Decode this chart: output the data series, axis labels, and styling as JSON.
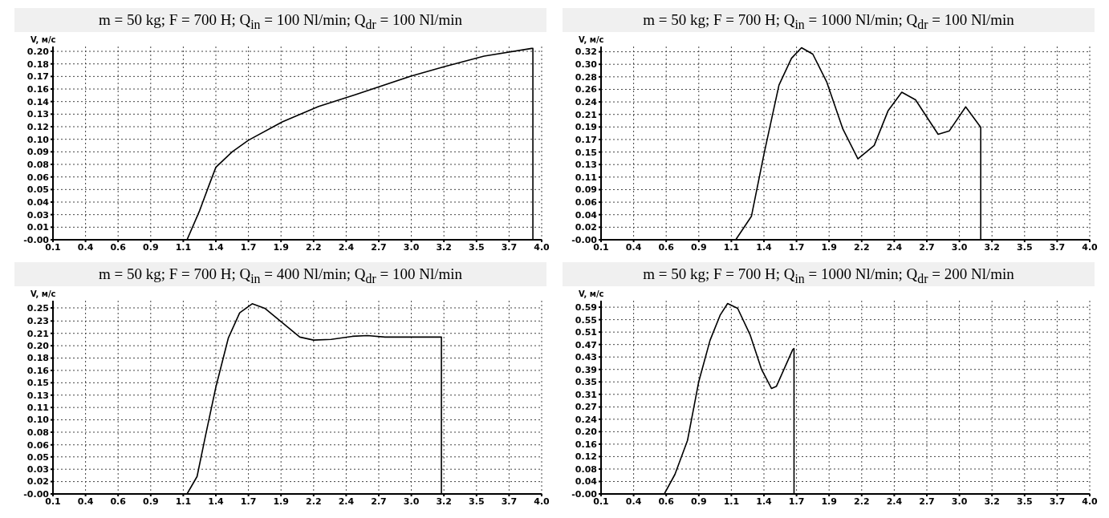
{
  "chart_data": [
    {
      "type": "line",
      "title": "m = 50 kg;  F = 700 H;  Q$_{in}$ = 100 Nl/min;   Q$_{dr}$ = 100 Nl/min",
      "ylabel": "V, м/с",
      "grid": true,
      "marker": "none",
      "line_style": "solid",
      "xlim": [
        0.1,
        4.0
      ],
      "ylim": [
        0,
        0.2
      ],
      "xticks": [
        {
          "value": 0.1,
          "label": "0.1"
        },
        {
          "value": 0.36,
          "label": "0.4"
        },
        {
          "value": 0.62,
          "label": "0.6"
        },
        {
          "value": 0.88,
          "label": "0.9"
        },
        {
          "value": 1.14,
          "label": "1.1"
        },
        {
          "value": 1.4,
          "label": "1.4"
        },
        {
          "value": 1.66,
          "label": "1.7"
        },
        {
          "value": 1.92,
          "label": "1.9"
        },
        {
          "value": 2.18,
          "label": "2.2"
        },
        {
          "value": 2.44,
          "label": "2.4"
        },
        {
          "value": 2.7,
          "label": "2.7"
        },
        {
          "value": 2.96,
          "label": "3.0"
        },
        {
          "value": 3.22,
          "label": "3.2"
        },
        {
          "value": 3.48,
          "label": "3.5"
        },
        {
          "value": 3.74,
          "label": "3.7"
        },
        {
          "value": 4.0,
          "label": "4.0"
        }
      ],
      "yticks": [
        {
          "value": 0,
          "label": "-0.00"
        },
        {
          "value": 0.013,
          "label": "0.01"
        },
        {
          "value": 0.026,
          "label": "0.03"
        },
        {
          "value": 0.039,
          "label": "0.04"
        },
        {
          "value": 0.052,
          "label": "0.05"
        },
        {
          "value": 0.065,
          "label": "0.06"
        },
        {
          "value": 0.078,
          "label": "0.08"
        },
        {
          "value": 0.091,
          "label": "0.09"
        },
        {
          "value": 0.104,
          "label": "0.10"
        },
        {
          "value": 0.117,
          "label": "0.12"
        },
        {
          "value": 0.13,
          "label": "0.13"
        },
        {
          "value": 0.143,
          "label": "0.14"
        },
        {
          "value": 0.156,
          "label": "0.16"
        },
        {
          "value": 0.169,
          "label": "0.17"
        },
        {
          "value": 0.182,
          "label": "0.18"
        },
        {
          "value": 0.195,
          "label": "0.20"
        }
      ],
      "series": [
        {
          "color": "#000000",
          "x": [
            0.1,
            1.17,
            1.27,
            1.35,
            1.4,
            1.53,
            1.66,
            1.93,
            2.22,
            2.51,
            2.95,
            3.22,
            3.54,
            3.92,
            3.93,
            3.93
          ],
          "values": [
            0,
            0,
            0.03,
            0.058,
            0.075,
            0.091,
            0.103,
            0.122,
            0.138,
            0.15,
            0.169,
            0.179,
            0.19,
            0.198,
            0.198,
            0
          ]
        }
      ]
    },
    {
      "type": "line",
      "title": "m = 50 kg;  F = 700 H;  Q$_{in}$ = 1000 Nl/min;   Q$_{dr}$ = 100 Nl/min",
      "ylabel": "V, м/с",
      "grid": true,
      "marker": "none",
      "line_style": "solid",
      "xlim": [
        0.1,
        4.0
      ],
      "ylim": [
        0,
        0.33
      ],
      "xticks": [
        {
          "value": 0.1,
          "label": "0.1"
        },
        {
          "value": 0.36,
          "label": "0.4"
        },
        {
          "value": 0.62,
          "label": "0.6"
        },
        {
          "value": 0.88,
          "label": "0.9"
        },
        {
          "value": 1.14,
          "label": "1.1"
        },
        {
          "value": 1.4,
          "label": "1.4"
        },
        {
          "value": 1.66,
          "label": "1.7"
        },
        {
          "value": 1.92,
          "label": "1.9"
        },
        {
          "value": 2.18,
          "label": "2.2"
        },
        {
          "value": 2.44,
          "label": "2.4"
        },
        {
          "value": 2.7,
          "label": "2.7"
        },
        {
          "value": 2.96,
          "label": "3.0"
        },
        {
          "value": 3.22,
          "label": "3.2"
        },
        {
          "value": 3.48,
          "label": "3.5"
        },
        {
          "value": 3.74,
          "label": "3.7"
        },
        {
          "value": 4.0,
          "label": "4.0"
        }
      ],
      "yticks": [
        {
          "value": 0,
          "label": "-0.00"
        },
        {
          "value": 0.0214,
          "label": "0.02"
        },
        {
          "value": 0.0428,
          "label": "0.04"
        },
        {
          "value": 0.0642,
          "label": "0.06"
        },
        {
          "value": 0.0856,
          "label": "0.09"
        },
        {
          "value": 0.107,
          "label": "0.11"
        },
        {
          "value": 0.1284,
          "label": "0.13"
        },
        {
          "value": 0.1498,
          "label": "0.15"
        },
        {
          "value": 0.1712,
          "label": "0.17"
        },
        {
          "value": 0.1926,
          "label": "0.19"
        },
        {
          "value": 0.214,
          "label": "0.21"
        },
        {
          "value": 0.2354,
          "label": "0.24"
        },
        {
          "value": 0.2568,
          "label": "0.26"
        },
        {
          "value": 0.2782,
          "label": "0.28"
        },
        {
          "value": 0.2996,
          "label": "0.30"
        },
        {
          "value": 0.321,
          "label": "0.32"
        }
      ],
      "series": [
        {
          "color": "#000000",
          "x": [
            1.175,
            1.3,
            1.4,
            1.52,
            1.62,
            1.7,
            1.79,
            1.9,
            2.03,
            2.15,
            2.28,
            2.39,
            2.5,
            2.61,
            2.79,
            2.88,
            3.01,
            3.13,
            3.13
          ],
          "values": [
            0,
            0.04,
            0.146,
            0.264,
            0.31,
            0.328,
            0.317,
            0.27,
            0.189,
            0.138,
            0.161,
            0.22,
            0.252,
            0.239,
            0.18,
            0.186,
            0.227,
            0.192,
            0
          ]
        }
      ]
    },
    {
      "type": "line",
      "title": "m = 50 kg;  F = 700 H;  Q$_{in}$ = 400 Nl/min;   Q$_{dr}$ = 100 Nl/min",
      "ylabel": "V, м/с",
      "grid": true,
      "marker": "none",
      "line_style": "solid",
      "xlim": [
        0.1,
        4.0
      ],
      "ylim": [
        0,
        0.255
      ],
      "xticks": [
        {
          "value": 0.1,
          "label": "0.1"
        },
        {
          "value": 0.36,
          "label": "0.4"
        },
        {
          "value": 0.62,
          "label": "0.6"
        },
        {
          "value": 0.88,
          "label": "0.9"
        },
        {
          "value": 1.14,
          "label": "1.1"
        },
        {
          "value": 1.4,
          "label": "1.4"
        },
        {
          "value": 1.66,
          "label": "1.7"
        },
        {
          "value": 1.92,
          "label": "1.9"
        },
        {
          "value": 2.18,
          "label": "2.2"
        },
        {
          "value": 2.44,
          "label": "2.4"
        },
        {
          "value": 2.7,
          "label": "2.7"
        },
        {
          "value": 2.96,
          "label": "3.0"
        },
        {
          "value": 3.22,
          "label": "3.2"
        },
        {
          "value": 3.48,
          "label": "3.5"
        },
        {
          "value": 3.74,
          "label": "3.7"
        },
        {
          "value": 4.0,
          "label": "4.0"
        }
      ],
      "yticks": [
        {
          "value": 0,
          "label": "-0.00"
        },
        {
          "value": 0.0163,
          "label": "0.02"
        },
        {
          "value": 0.0326,
          "label": "0.03"
        },
        {
          "value": 0.0489,
          "label": "0.05"
        },
        {
          "value": 0.0648,
          "label": "0.06"
        },
        {
          "value": 0.0815,
          "label": "0.08"
        },
        {
          "value": 0.0978,
          "label": "0.10"
        },
        {
          "value": 0.1141,
          "label": "0.11"
        },
        {
          "value": 0.1304,
          "label": "0.13"
        },
        {
          "value": 0.1467,
          "label": "0.15"
        },
        {
          "value": 0.163,
          "label": "0.16"
        },
        {
          "value": 0.1793,
          "label": "0.18"
        },
        {
          "value": 0.1956,
          "label": "0.20"
        },
        {
          "value": 0.2119,
          "label": "0.21"
        },
        {
          "value": 0.2282,
          "label": "0.23"
        },
        {
          "value": 0.2455,
          "label": "0.25"
        }
      ],
      "series": [
        {
          "color": "#000000",
          "x": [
            1.17,
            1.25,
            1.32,
            1.4,
            1.5,
            1.59,
            1.69,
            1.79,
            1.93,
            2.07,
            2.18,
            2.32,
            2.49,
            2.61,
            2.75,
            3.2,
            3.2
          ],
          "values": [
            0,
            0.023,
            0.079,
            0.141,
            0.206,
            0.239,
            0.251,
            0.245,
            0.226,
            0.207,
            0.203,
            0.204,
            0.208,
            0.209,
            0.207,
            0.207,
            0
          ]
        }
      ]
    },
    {
      "type": "line",
      "title": "m = 50 kg;  F = 700 H;  Q$_{in}$ = 1000 Nl/min;   Q$_{dr}$ = 200 Nl/min",
      "ylabel": "V, м/с",
      "grid": true,
      "marker": "none",
      "line_style": "solid",
      "xlim": [
        0.1,
        4.0
      ],
      "ylim": [
        0,
        0.61
      ],
      "xticks": [
        {
          "value": 0.1,
          "label": "0.1"
        },
        {
          "value": 0.36,
          "label": "0.4"
        },
        {
          "value": 0.62,
          "label": "0.6"
        },
        {
          "value": 0.88,
          "label": "0.9"
        },
        {
          "value": 1.14,
          "label": "1.1"
        },
        {
          "value": 1.4,
          "label": "1.4"
        },
        {
          "value": 1.66,
          "label": "1.7"
        },
        {
          "value": 1.92,
          "label": "1.9"
        },
        {
          "value": 2.18,
          "label": "2.2"
        },
        {
          "value": 2.44,
          "label": "2.4"
        },
        {
          "value": 2.7,
          "label": "2.7"
        },
        {
          "value": 2.96,
          "label": "3.0"
        },
        {
          "value": 3.22,
          "label": "3.2"
        },
        {
          "value": 3.48,
          "label": "3.5"
        },
        {
          "value": 3.74,
          "label": "3.7"
        },
        {
          "value": 4.0,
          "label": "4.0"
        }
      ],
      "yticks": [
        {
          "value": 0,
          "label": "-0.00"
        },
        {
          "value": 0.0393,
          "label": "0.04"
        },
        {
          "value": 0.0786,
          "label": "0.08"
        },
        {
          "value": 0.1179,
          "label": "0.12"
        },
        {
          "value": 0.1572,
          "label": "0.16"
        },
        {
          "value": 0.1965,
          "label": "0.20"
        },
        {
          "value": 0.2358,
          "label": "0.24"
        },
        {
          "value": 0.2745,
          "label": "0.27"
        },
        {
          "value": 0.3144,
          "label": "0.31"
        },
        {
          "value": 0.3537,
          "label": "0.35"
        },
        {
          "value": 0.393,
          "label": "0.39"
        },
        {
          "value": 0.4323,
          "label": "0.43"
        },
        {
          "value": 0.4716,
          "label": "0.47"
        },
        {
          "value": 0.5109,
          "label": "0.51"
        },
        {
          "value": 0.5502,
          "label": "0.55"
        },
        {
          "value": 0.5895,
          "label": "0.59"
        }
      ],
      "series": [
        {
          "color": "#000000",
          "x": [
            0.605,
            0.69,
            0.79,
            0.88,
            0.97,
            1.05,
            1.11,
            1.19,
            1.29,
            1.38,
            1.46,
            1.5,
            1.63,
            1.64,
            1.64
          ],
          "values": [
            0,
            0.062,
            0.169,
            0.355,
            0.485,
            0.564,
            0.601,
            0.586,
            0.502,
            0.394,
            0.333,
            0.34,
            0.456,
            0.459,
            0
          ]
        }
      ]
    }
  ]
}
